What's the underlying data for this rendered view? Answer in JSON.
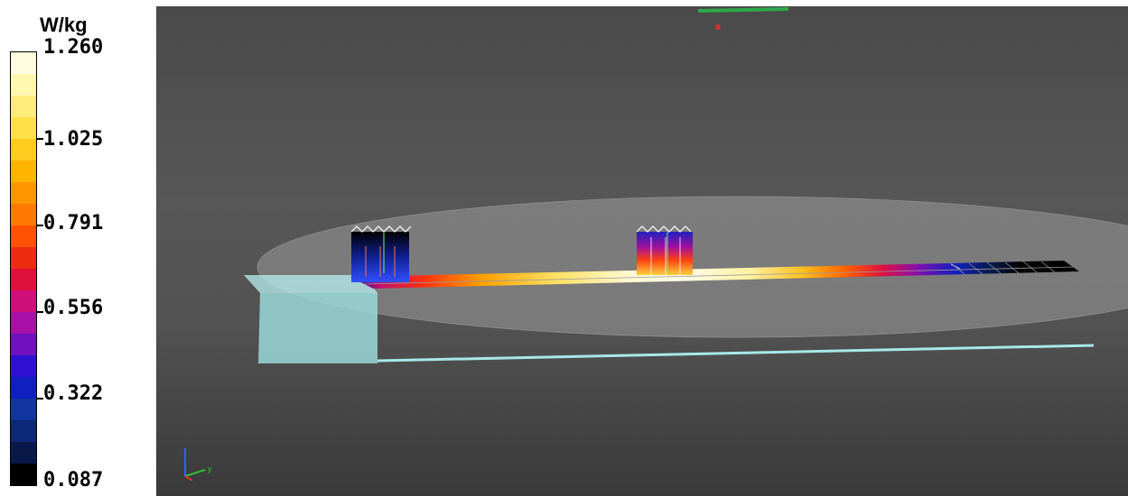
{
  "legend": {
    "unit": "W/kg",
    "ticks": [
      "1.260",
      "1.025",
      "0.791",
      "0.556",
      "0.322",
      "0.087"
    ],
    "colors": [
      "#fffce0",
      "#fff6b0",
      "#ffec7a",
      "#ffe04a",
      "#ffcc20",
      "#ffb400",
      "#ff9600",
      "#ff7a00",
      "#ff5200",
      "#ee2c10",
      "#e0103c",
      "#d0107a",
      "#a810a8",
      "#7010c0",
      "#3010d0",
      "#1020c0",
      "#1034a0",
      "#0c2878",
      "#081848",
      "#000000"
    ]
  },
  "viewport": {
    "background": "#4f4f4f",
    "axes_label": "y"
  }
}
